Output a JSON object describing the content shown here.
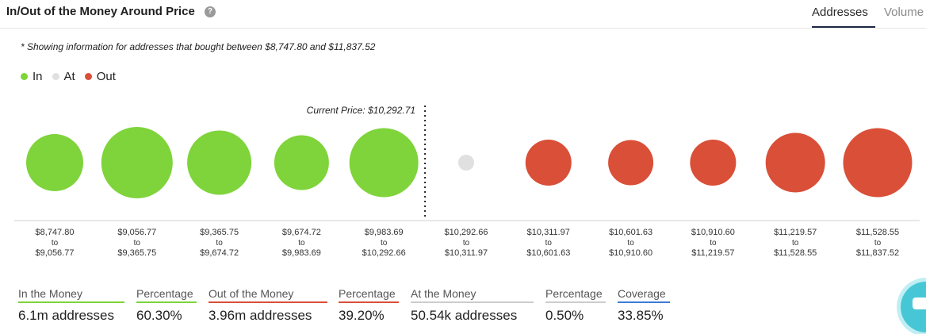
{
  "header": {
    "title": "In/Out of the Money Around Price",
    "help_icon": "question-circle-icon",
    "tabs": [
      "Addresses",
      "Volume"
    ],
    "active_tab": "Addresses"
  },
  "note": "* Showing information for addresses that bought between $8,747.80 and $11,837.52",
  "legend": [
    {
      "label": "In",
      "color": "#7ed43a"
    },
    {
      "label": "At",
      "color": "#e0e0e0"
    },
    {
      "label": "Out",
      "color": "#d94f38"
    }
  ],
  "chart_data": {
    "type": "scatter",
    "annotation": "Current Price: $10,292.71",
    "current_price": 10292.71,
    "ranges": [
      {
        "from": "$8,747.80",
        "to": "$9,056.77",
        "status": "in",
        "relative_size": 0.72
      },
      {
        "from": "$9,056.77",
        "to": "$9,365.75",
        "status": "in",
        "relative_size": 0.9
      },
      {
        "from": "$9,365.75",
        "to": "$9,674.72",
        "status": "in",
        "relative_size": 0.81
      },
      {
        "from": "$9,674.72",
        "to": "$9,983.69",
        "status": "in",
        "relative_size": 0.69
      },
      {
        "from": "$9,983.69",
        "to": "$10,292.66",
        "status": "in",
        "relative_size": 0.87
      },
      {
        "from": "$10,292.66",
        "to": "$10,311.97",
        "status": "at",
        "relative_size": 0.2
      },
      {
        "from": "$10,311.97",
        "to": "$10,601.63",
        "status": "out",
        "relative_size": 0.58
      },
      {
        "from": "$10,601.63",
        "to": "$10,910.60",
        "status": "out",
        "relative_size": 0.57
      },
      {
        "from": "$10,910.60",
        "to": "$11,219.57",
        "status": "out",
        "relative_size": 0.58
      },
      {
        "from": "$11,219.57",
        "to": "$11,528.55",
        "status": "out",
        "relative_size": 0.75
      },
      {
        "from": "$11,528.55",
        "to": "$11,837.52",
        "status": "out",
        "relative_size": 0.87
      }
    ],
    "range_connector": "to",
    "colors": {
      "in": "#7ed43a",
      "at": "#e0e0e0",
      "out": "#d94f38"
    }
  },
  "stats": [
    {
      "label": "In the Money",
      "value": "6.1m addresses",
      "color": "#7ed43a"
    },
    {
      "label": "Percentage",
      "value": "60.30%",
      "color": "#7ed43a"
    },
    {
      "label": "Out of the Money",
      "value": "3.96m addresses",
      "color": "#d94f38"
    },
    {
      "label": "Percentage",
      "value": "39.20%",
      "color": "#d94f38"
    },
    {
      "label": "At the Money",
      "value": "50.54k addresses",
      "color": "#cccccc"
    },
    {
      "label": "Percentage",
      "value": "0.50%",
      "color": "#cccccc"
    },
    {
      "label": "Coverage",
      "value": "33.85%",
      "color": "#3d7ad6"
    }
  ],
  "chat_icon": "chat-bubble-icon"
}
